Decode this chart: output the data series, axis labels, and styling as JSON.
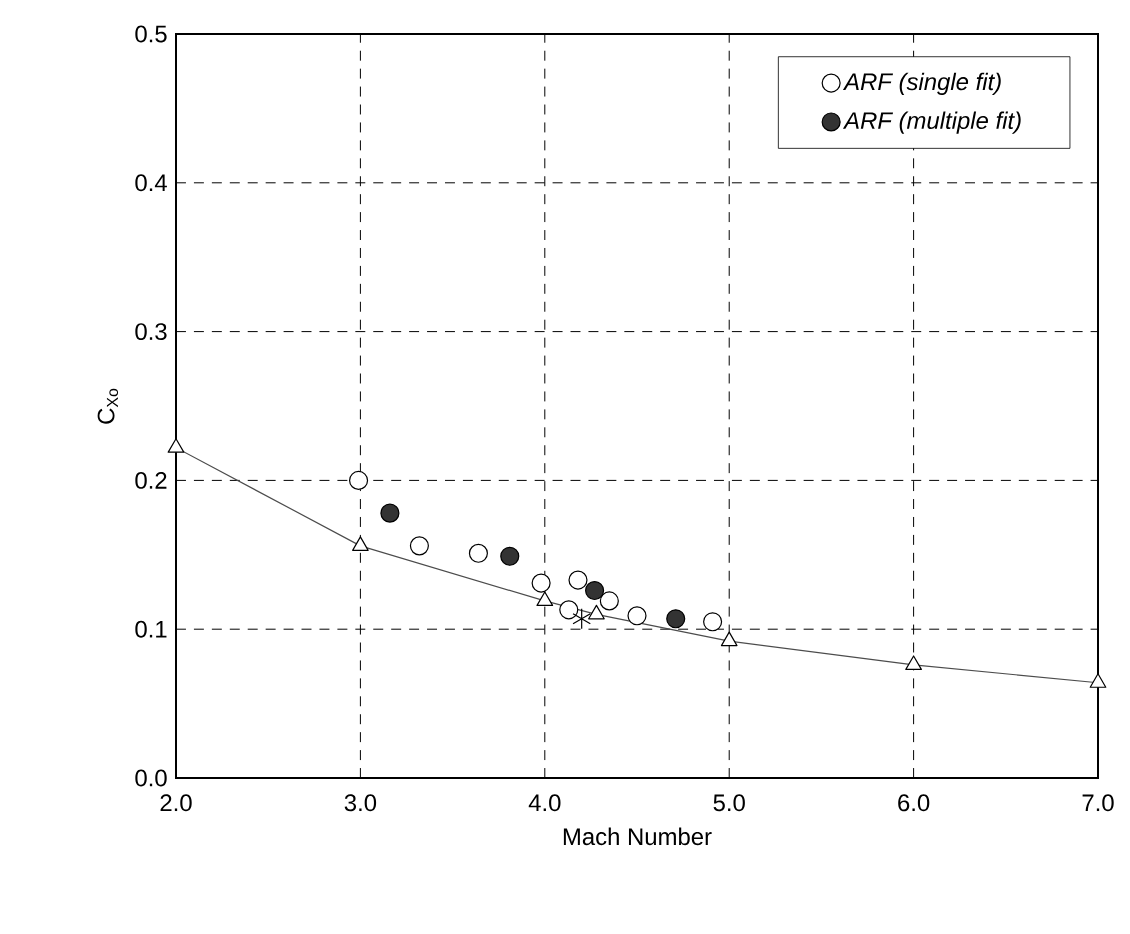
{
  "chart_data": {
    "type": "scatter",
    "xlabel": "Mach Number",
    "ylabel": "C$_{Xo}$",
    "xlim": [
      2,
      7
    ],
    "ylim": [
      0,
      0.5
    ],
    "xticks": [
      {
        "value": 2,
        "label": "2.0"
      },
      {
        "value": 3,
        "label": "3.0"
      },
      {
        "value": 4,
        "label": "4.0"
      },
      {
        "value": 5,
        "label": "5.0"
      },
      {
        "value": 6,
        "label": "6.0"
      },
      {
        "value": 7,
        "label": "7.0"
      }
    ],
    "yticks": [
      {
        "value": 0,
        "label": "0.0"
      },
      0.1,
      0.2,
      0.3,
      0.4,
      0.5
    ],
    "grid": true,
    "legend": "top right",
    "series": [
      {
        "name": "ARF (single fit)",
        "marker": "circle",
        "color": "#ffffff",
        "x": [
          2.99,
          3.32,
          3.64,
          3.98,
          4.13,
          4.18,
          4.35,
          4.5,
          4.91
        ],
        "values": [
          0.2,
          0.156,
          0.151,
          0.131,
          0.113,
          0.133,
          0.119,
          0.109,
          0.105
        ]
      },
      {
        "name": "ARF (multiple fit)",
        "marker": "circle",
        "color": "#333333",
        "x": [
          3.16,
          3.81,
          4.27,
          4.71
        ],
        "values": [
          0.178,
          0.149,
          0.126,
          0.107
        ]
      },
      {
        "type": "line",
        "marker": "triangle",
        "color": "#ffffff",
        "x": [
          2,
          3,
          4,
          4.28,
          5,
          6,
          7
        ],
        "values": [
          0.222,
          0.156,
          0.119,
          0.11,
          0.092,
          0.076,
          0.064
        ]
      },
      {
        "marker": "cross",
        "color": "#000000",
        "x": [
          4.2
        ],
        "values": [
          0.107
        ]
      }
    ]
  }
}
